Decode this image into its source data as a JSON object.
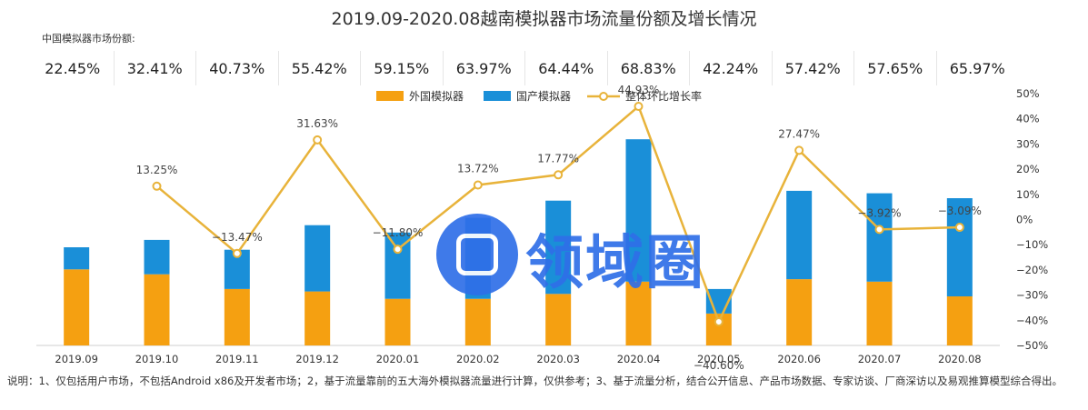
{
  "title": "2019.09-2020.08越南模拟器市场流量份额及增长情况",
  "subtitle": "中国模拟器市场份额:",
  "shares": [
    "22.45%",
    "32.41%",
    "40.73%",
    "55.42%",
    "59.15%",
    "63.97%",
    "64.44%",
    "68.83%",
    "42.24%",
    "57.42%",
    "57.65%",
    "65.97%"
  ],
  "watermark": "领域圈",
  "note": "说明：1、仅包括用户市场，不包括Android x86及开发者市场；2，基于流量靠前的五大海外模拟器流量进行计算，仅供参考；3、基于流量分析，结合公开信息、产品市场数据、专家访谈、厂商深访以及易观推算模型综合得出。",
  "colors": {
    "foreign": "#f5a011",
    "domestic": "#1a8fd8",
    "growth": "#e8b33a"
  },
  "chart_data": {
    "type": "bar",
    "categories": [
      "2019.09",
      "2019.10",
      "2019.11",
      "2019.12",
      "2020.01",
      "2020.02",
      "2020.03",
      "2020.04",
      "2020.05",
      "2020.06",
      "2020.07",
      "2020.08"
    ],
    "series": [
      {
        "name": "外国模拟器",
        "kind": "bar",
        "values": [
          31,
          29,
          23,
          22,
          19,
          19,
          21,
          26,
          13,
          27,
          26,
          20
        ]
      },
      {
        "name": "国产模拟器",
        "kind": "bar",
        "values": [
          9,
          14,
          16,
          27,
          27,
          33,
          38,
          58,
          10,
          36,
          36,
          40
        ]
      },
      {
        "name": "整体环比增长率",
        "kind": "line",
        "axis": "right",
        "values": [
          null,
          13.25,
          -13.47,
          31.63,
          -11.8,
          13.72,
          17.77,
          44.93,
          -40.6,
          27.47,
          -3.92,
          -3.09
        ]
      }
    ],
    "point_labels": [
      "",
      "13.25%",
      "−13.47%",
      "31.63%",
      "−11.80%",
      "13.72%",
      "17.77%",
      "44.93%",
      "−40.60%",
      "27.47%",
      "−3.92%",
      "−3.09%"
    ],
    "y2_ticks": [
      "50%",
      "40%",
      "30%",
      "20%",
      "10%",
      "0%",
      "−10%",
      "−20%",
      "−30%",
      "−40%",
      "−50%"
    ],
    "y2lim": [
      -50,
      50
    ],
    "legend_position": "top-center"
  }
}
